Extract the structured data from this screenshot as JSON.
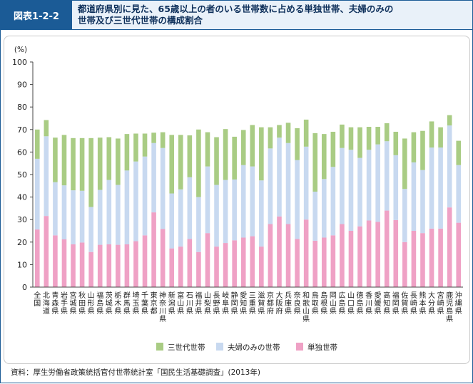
{
  "header": {
    "figure_label": "図表1-2-2",
    "title_line1": "都道府県別に見た、65歳以上の者のいる世帯数に占める単独世帯、夫婦のみの",
    "title_line2": "世帯及び三世代世帯の構成割合"
  },
  "source": "資料：厚生労働省政策統括官付世帯統計室「国民生活基礎調査」(2013年)",
  "colors": {
    "single": "#efa1c5",
    "couple": "#c8d9f0",
    "three_gen": "#a9cc84",
    "axis": "#444444",
    "grid": "#d0d0d0"
  },
  "chart_data": {
    "type": "bar",
    "stacked": true,
    "unit_label": "(%)",
    "ylim": [
      0,
      100
    ],
    "yticks": [
      0,
      10,
      20,
      30,
      40,
      50,
      60,
      70,
      80,
      90,
      100
    ],
    "grid": false,
    "legend_position": "bottom-center",
    "categories": [
      "全国",
      "北海道",
      "青森県",
      "岩手県",
      "宮城県",
      "秋田県",
      "山形県",
      "福島県",
      "茨城県",
      "栃木県",
      "群馬県",
      "埼玉県",
      "千葉県",
      "東京都",
      "神奈川県",
      "新潟県",
      "富山県",
      "石川県",
      "福井県",
      "山梨県",
      "長野県",
      "岐阜県",
      "静岡県",
      "愛知県",
      "三重県",
      "滋賀県",
      "京都府",
      "大阪府",
      "兵庫県",
      "奈良県",
      "和歌山県",
      "鳥取県",
      "島根県",
      "岡山県",
      "広島県",
      "山口県",
      "徳島県",
      "香川県",
      "愛媛県",
      "高知県",
      "福岡県",
      "佐賀県",
      "長崎県",
      "熊本県",
      "大分県",
      "宮崎県",
      "鹿児島県",
      "沖縄県"
    ],
    "series": [
      {
        "name": "単独世帯",
        "values": [
          25.6,
          31.6,
          23.0,
          21.2,
          19.0,
          19.8,
          15.6,
          18.8,
          19.0,
          18.8,
          19.0,
          20.4,
          23.0,
          33.2,
          25.8,
          17.2,
          18.0,
          21.4,
          15.6,
          24.0,
          18.0,
          19.6,
          20.8,
          22.0,
          22.6,
          18.0,
          28.0,
          31.4,
          28.0,
          21.4,
          30.0,
          20.6,
          22.0,
          23.0,
          28.0,
          25.0,
          27.0,
          29.6,
          29.0,
          34.0,
          29.8,
          20.0,
          25.0,
          24.0,
          26.0,
          26.0,
          35.4,
          28.6
        ]
      },
      {
        "name": "夫婦のみの世帯",
        "values": [
          31.4,
          35.4,
          23.6,
          24.0,
          24.0,
          23.0,
          20.0,
          24.4,
          28.6,
          26.6,
          32.8,
          35.4,
          35.0,
          30.8,
          36.0,
          24.4,
          25.4,
          27.4,
          24.4,
          29.6,
          27.4,
          28.0,
          27.0,
          32.2,
          31.0,
          29.4,
          33.6,
          35.0,
          36.0,
          35.0,
          32.4,
          21.8,
          26.0,
          30.4,
          33.8,
          36.0,
          30.4,
          31.4,
          34.4,
          30.8,
          28.8,
          23.6,
          30.4,
          28.0,
          36.0,
          36.0,
          36.4,
          25.6
        ]
      },
      {
        "name": "三世代世帯",
        "values": [
          13.0,
          7.2,
          19.8,
          22.4,
          23.2,
          23.4,
          30.6,
          23.2,
          19.0,
          20.6,
          16.2,
          12.4,
          10.2,
          4.6,
          7.0,
          26.0,
          24.2,
          18.6,
          30.0,
          15.2,
          21.2,
          22.6,
          19.0,
          15.6,
          18.4,
          23.6,
          9.4,
          5.6,
          9.0,
          14.2,
          12.0,
          26.0,
          20.0,
          15.6,
          10.4,
          10.0,
          13.6,
          10.2,
          7.8,
          8.0,
          10.4,
          22.4,
          13.4,
          17.4,
          11.6,
          9.0,
          4.6,
          10.8
        ]
      }
    ]
  }
}
